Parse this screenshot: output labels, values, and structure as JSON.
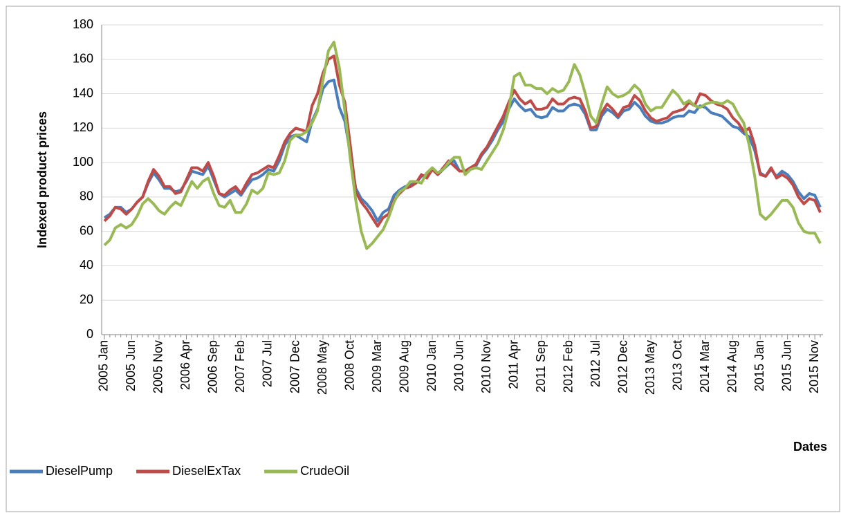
{
  "chart_data": {
    "type": "line",
    "y_label": "Indexed product prices",
    "x_label": "Dates",
    "categories": [
      "2005 Jan",
      null,
      null,
      null,
      null,
      "2005 Jun",
      null,
      null,
      null,
      null,
      "2005 Nov",
      null,
      null,
      null,
      null,
      "2006 Apr",
      null,
      null,
      null,
      null,
      "2006 Sep",
      null,
      null,
      null,
      null,
      "2007 Feb",
      null,
      null,
      null,
      null,
      "2007 Jul",
      null,
      null,
      null,
      null,
      "2007 Dec",
      null,
      null,
      null,
      null,
      "2008 May",
      null,
      null,
      null,
      null,
      "2008 Oct",
      null,
      null,
      null,
      null,
      "2009 Mar",
      null,
      null,
      null,
      null,
      "2009 Aug",
      null,
      null,
      null,
      null,
      "2010 Jan",
      null,
      null,
      null,
      null,
      "2010 Jun",
      null,
      null,
      null,
      null,
      "2010 Nov",
      null,
      null,
      null,
      null,
      "2011 Apr",
      null,
      null,
      null,
      null,
      "2011 Sep",
      null,
      null,
      null,
      null,
      "2012 Feb",
      null,
      null,
      null,
      null,
      "2012 Jul",
      null,
      null,
      null,
      null,
      "2012 Dec",
      null,
      null,
      null,
      null,
      "2013 May",
      null,
      null,
      null,
      null,
      "2013 Oct",
      null,
      null,
      null,
      null,
      "2014 Mar",
      null,
      null,
      null,
      null,
      "2014 Aug",
      null,
      null,
      null,
      null,
      "2015 Jan",
      null,
      null,
      null,
      null,
      "2015 Jun",
      null,
      null,
      null,
      null,
      "2015 Nov",
      null
    ],
    "series": [
      {
        "name": "DieselPump",
        "color": "#4a7ebb",
        "values": [
          68,
          70,
          74,
          74,
          71,
          73,
          77,
          80,
          88,
          94,
          90,
          85,
          85,
          83,
          84,
          89,
          95,
          94,
          93,
          98,
          90,
          82,
          80,
          82,
          84,
          81,
          86,
          90,
          91,
          93,
          96,
          95,
          101,
          110,
          115,
          116,
          114,
          112,
          124,
          131,
          143,
          147,
          148,
          132,
          124,
          105,
          85,
          79,
          76,
          72,
          66,
          71,
          73,
          81,
          84,
          86,
          87,
          88,
          92,
          93,
          96,
          93,
          96,
          99,
          101,
          95,
          95,
          97,
          98,
          104,
          108,
          113,
          119,
          124,
          131,
          137,
          133,
          130,
          131,
          127,
          126,
          127,
          132,
          130,
          130,
          133,
          134,
          133,
          128,
          119,
          119,
          127,
          131,
          129,
          126,
          130,
          131,
          135,
          132,
          127,
          124,
          123,
          123,
          124,
          126,
          127,
          127,
          130,
          129,
          133,
          132,
          129,
          128,
          127,
          124,
          121,
          120,
          117,
          115,
          107,
          94,
          92,
          96,
          92,
          95,
          93,
          89,
          83,
          79,
          82,
          81,
          74
        ]
      },
      {
        "name": "DieselExTax",
        "color": "#be4b48",
        "values": [
          66,
          69,
          74,
          73,
          70,
          73,
          77,
          80,
          89,
          96,
          92,
          86,
          86,
          82,
          83,
          90,
          97,
          97,
          95,
          100,
          92,
          82,
          81,
          84,
          86,
          82,
          88,
          93,
          94,
          96,
          98,
          97,
          104,
          112,
          117,
          120,
          119,
          118,
          133,
          140,
          152,
          160,
          162,
          145,
          135,
          110,
          83,
          77,
          73,
          68,
          63,
          68,
          70,
          78,
          82,
          85,
          86,
          88,
          93,
          91,
          96,
          93,
          97,
          101,
          98,
          95,
          95,
          97,
          99,
          105,
          109,
          115,
          121,
          127,
          135,
          142,
          137,
          134,
          136,
          131,
          131,
          132,
          137,
          134,
          134,
          137,
          138,
          137,
          130,
          120,
          121,
          129,
          134,
          131,
          127,
          132,
          133,
          139,
          136,
          130,
          126,
          124,
          125,
          126,
          129,
          130,
          131,
          135,
          133,
          140,
          139,
          136,
          134,
          133,
          131,
          126,
          123,
          118,
          120,
          110,
          93,
          92,
          97,
          91,
          93,
          91,
          87,
          80,
          76,
          79,
          78,
          71
        ]
      },
      {
        "name": "CrudeOil",
        "color": "#98b954",
        "values": [
          52,
          55,
          62,
          64,
          62,
          64,
          69,
          76,
          79,
          76,
          72,
          70,
          74,
          77,
          75,
          82,
          89,
          85,
          89,
          91,
          82,
          75,
          74,
          78,
          71,
          71,
          76,
          84,
          82,
          85,
          94,
          93,
          94,
          101,
          113,
          116,
          116,
          118,
          123,
          130,
          148,
          165,
          170,
          155,
          130,
          102,
          78,
          60,
          50,
          53,
          57,
          61,
          68,
          77,
          83,
          85,
          89,
          89,
          88,
          94,
          97,
          94,
          96,
          100,
          103,
          103,
          93,
          96,
          97,
          96,
          101,
          106,
          111,
          119,
          131,
          150,
          152,
          145,
          145,
          143,
          143,
          140,
          143,
          141,
          142,
          147,
          157,
          151,
          140,
          127,
          123,
          134,
          144,
          140,
          138,
          139,
          141,
          145,
          142,
          134,
          130,
          132,
          132,
          137,
          142,
          139,
          134,
          136,
          133,
          132,
          134,
          135,
          135,
          134,
          136,
          134,
          128,
          123,
          110,
          92,
          70,
          67,
          70,
          74,
          78,
          78,
          74,
          65,
          60,
          59,
          59,
          53
        ]
      }
    ],
    "ylim": [
      0,
      180
    ],
    "yticks": [
      0,
      20,
      40,
      60,
      80,
      100,
      120,
      140,
      160,
      180
    ],
    "grid": true,
    "legend": "bottom-left"
  }
}
